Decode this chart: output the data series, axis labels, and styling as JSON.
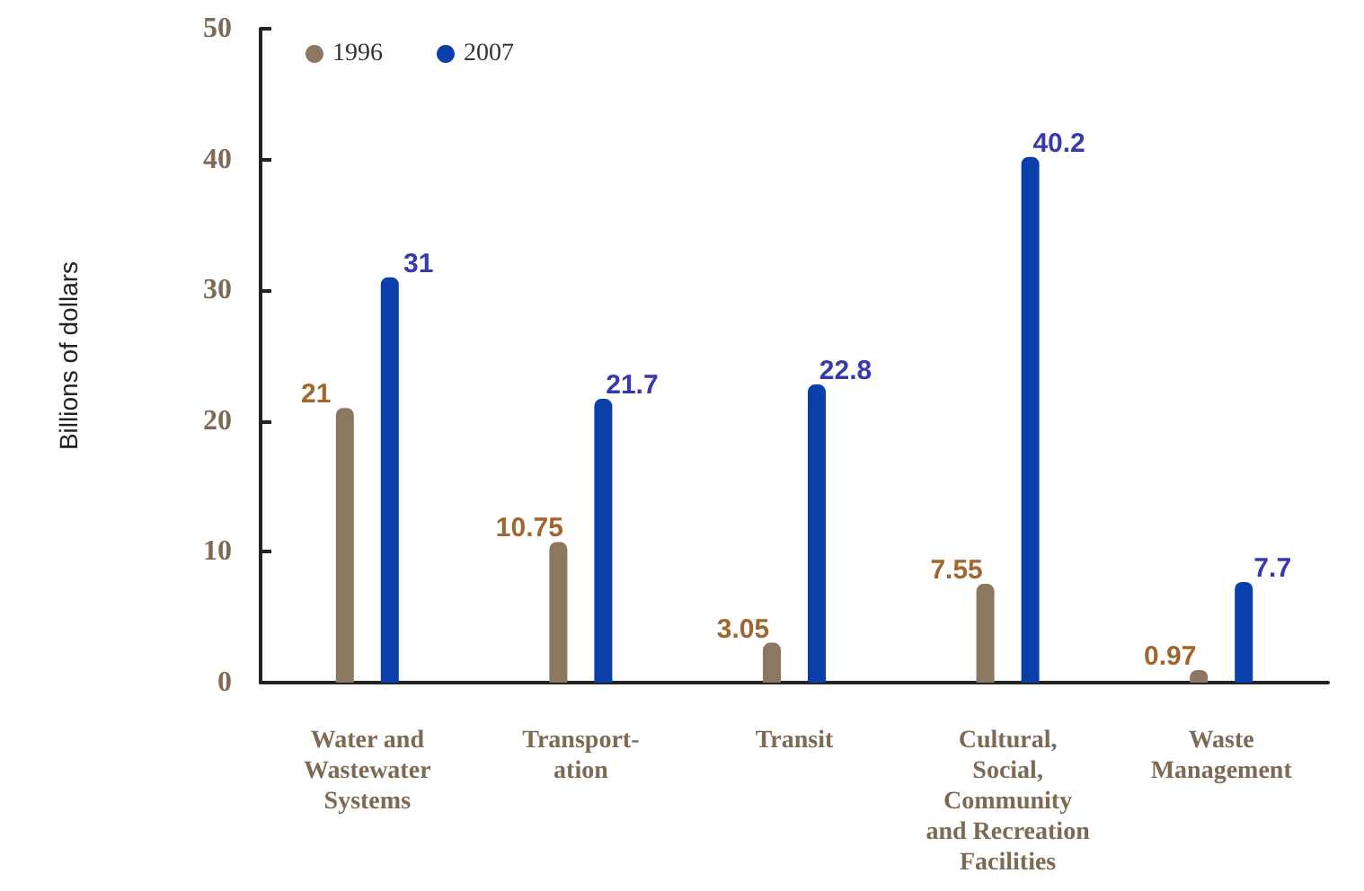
{
  "chart_data": {
    "type": "bar",
    "ylabel": "Billions of dollars",
    "categories": [
      "Water and\nWastewater\nSystems",
      "Transport-\nation",
      "Transit",
      "Cultural,\nSocial,\nCommunity\nand Recreation\nFacilities",
      "Waste\nManagement"
    ],
    "series": [
      {
        "name": "1996",
        "color": "#8c7761",
        "values": [
          21,
          10.75,
          3.05,
          7.55,
          0.97
        ]
      },
      {
        "name": "2007",
        "color": "#0a3ea8",
        "values": [
          31,
          21.7,
          22.8,
          40.2,
          7.7
        ]
      }
    ],
    "ylim": [
      0,
      50
    ],
    "yticks": [
      0,
      10,
      20,
      30,
      40,
      50
    ],
    "grid": false,
    "legend": "top left",
    "data_labels": true
  }
}
